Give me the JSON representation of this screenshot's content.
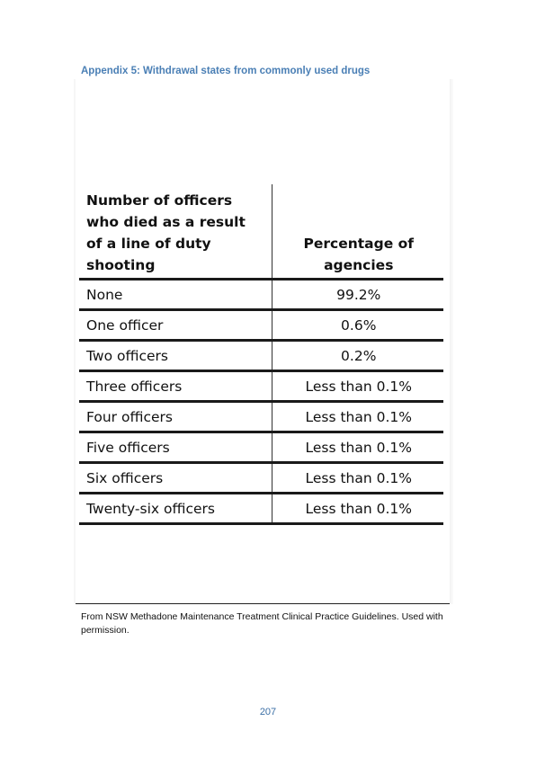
{
  "heading": "Appendix 5: Withdrawal states from commonly used drugs",
  "table": {
    "headers": [
      "Number of officers who died as a result of a line of duty shooting",
      "Percentage of agencies"
    ],
    "rows": [
      {
        "label": "None",
        "value": "99.2%"
      },
      {
        "label": "One officer",
        "value": "0.6%"
      },
      {
        "label": "Two officers",
        "value": "0.2%"
      },
      {
        "label": "Three officers",
        "value": "Less than 0.1%"
      },
      {
        "label": "Four officers",
        "value": "Less than 0.1%"
      },
      {
        "label": "Five officers",
        "value": "Less than 0.1%"
      },
      {
        "label": "Six officers",
        "value": "Less than 0.1%"
      },
      {
        "label": "Twenty-six officers",
        "value": "Less than 0.1%"
      }
    ]
  },
  "caption": "From NSW Methadone Maintenance Treatment Clinical Practice Guidelines. Used with permission.",
  "page_number": "207",
  "colors": {
    "heading": "#4a7fb5",
    "page_number": "#3a6ea5"
  }
}
